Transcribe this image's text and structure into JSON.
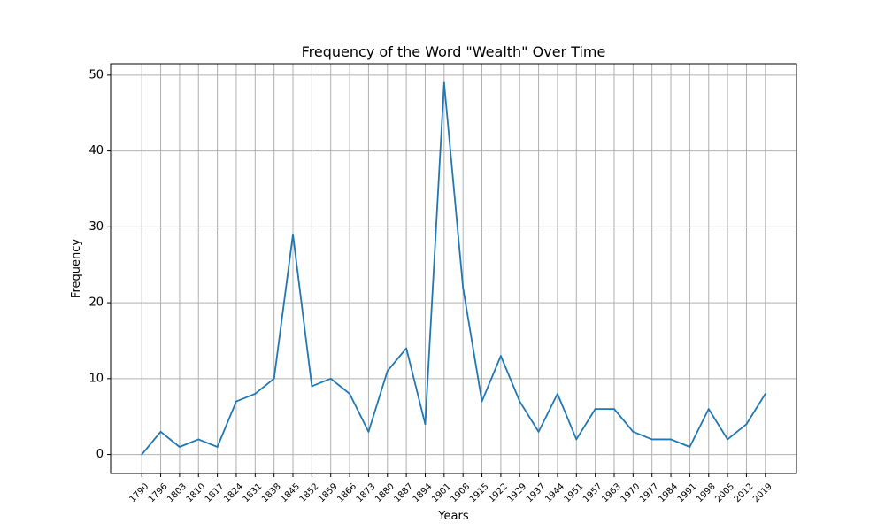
{
  "chart_data": {
    "type": "line",
    "title": "Frequency of the Word \"Wealth\" Over Time",
    "xlabel": "Years",
    "ylabel": "Frequency",
    "ylim": [
      -2.5,
      51.5
    ],
    "yticks": [
      0,
      10,
      20,
      30,
      40,
      50
    ],
    "grid": true,
    "categories": [
      "1790",
      "1796",
      "1803",
      "1810",
      "1817",
      "1824",
      "1831",
      "1838",
      "1845",
      "1852",
      "1859",
      "1866",
      "1873",
      "1880",
      "1887",
      "1894",
      "1901",
      "1908",
      "1915",
      "1922",
      "1929",
      "1937",
      "1944",
      "1951",
      "1957",
      "1963",
      "1970",
      "1977",
      "1984",
      "1991",
      "1998",
      "2005",
      "2012",
      "2019"
    ],
    "series": [
      {
        "color": "#1f77b4",
        "values": [
          0,
          3,
          1,
          2,
          1,
          7,
          8,
          10,
          29,
          9,
          10,
          8,
          3,
          11,
          14,
          4,
          49,
          22,
          7,
          13,
          7,
          3,
          8,
          2,
          6,
          6,
          3,
          2,
          2,
          1,
          6,
          2,
          4,
          8
        ]
      }
    ]
  }
}
